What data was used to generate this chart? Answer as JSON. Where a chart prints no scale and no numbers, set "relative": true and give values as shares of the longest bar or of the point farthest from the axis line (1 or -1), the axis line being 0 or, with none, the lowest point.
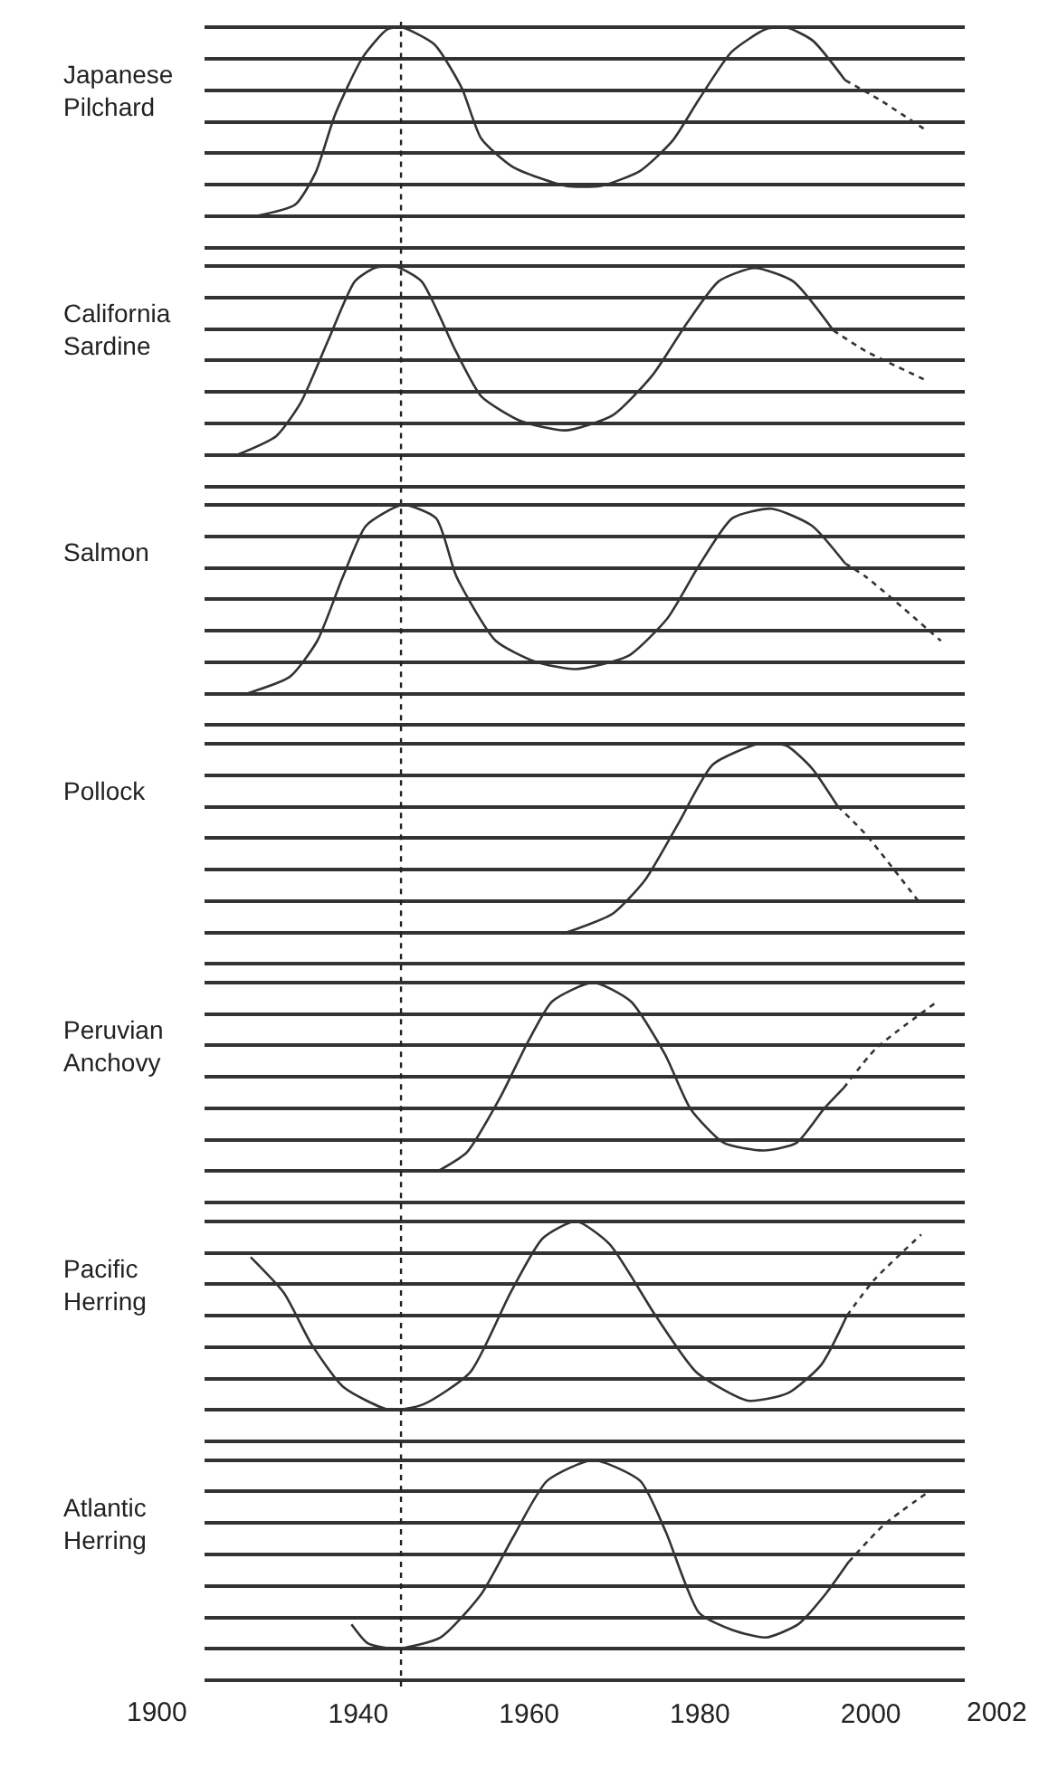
{
  "chart_data": [
    {
      "type": "line",
      "ylabel": "Japanese\nPilchard",
      "relative": true,
      "grid": "y",
      "tick_labels": false,
      "xlim": [
        1922,
        2011
      ],
      "ref_lines": [
        {
          "axis": "x",
          "value": 1945,
          "line_style": "dotted",
          "color": "#222222"
        }
      ],
      "series": [
        {
          "color": "#333333",
          "line_style": "solid",
          "x": [
            1928.0,
            1932.6,
            1935.0,
            1937.3,
            1940.5,
            1943.4,
            1945.1,
            1948.9,
            1952.1,
            1954.4,
            1958.1,
            1964.3,
            1968.4,
            1973.0,
            1976.8,
            1979.9,
            1983.7,
            1987.7,
            1990.1,
            1993.2,
            1997.0
          ],
          "values": [
            0,
            0.06,
            0.23,
            0.54,
            0.84,
            0.99,
            1,
            0.91,
            0.68,
            0.41,
            0.26,
            0.16,
            0.16,
            0.24,
            0.4,
            0.62,
            0.87,
            0.99,
            1,
            0.93,
            0.72
          ]
        },
        {
          "color": "#333333",
          "line_style": "dotted",
          "x": [
            1997.0,
            2000.9,
            2006.3
          ],
          "values": [
            0.72,
            0.62,
            0.46
          ]
        }
      ]
    },
    {
      "type": "line",
      "ylabel": "California\nSardine",
      "relative": true,
      "grid": "y",
      "tick_labels": false,
      "xlim": [
        1922,
        2011
      ],
      "ref_lines": [
        {
          "axis": "x",
          "value": 1945,
          "line_style": "dotted",
          "color": "#222222"
        }
      ],
      "series": [
        {
          "color": "#333333",
          "line_style": "solid",
          "x": [
            1925.8,
            1930.4,
            1933.3,
            1936.5,
            1939.6,
            1941.9,
            1944.3,
            1947.4,
            1951.3,
            1954.4,
            1959.0,
            1964.3,
            1969.8,
            1974.4,
            1978.5,
            1982.2,
            1986.4,
            1990.9,
            1995.6
          ],
          "values": [
            0,
            0.1,
            0.28,
            0.61,
            0.92,
            0.99,
            1,
            0.92,
            0.56,
            0.31,
            0.18,
            0.13,
            0.21,
            0.42,
            0.7,
            0.92,
            0.99,
            0.92,
            0.66
          ]
        },
        {
          "color": "#333333",
          "line_style": "dotted",
          "x": [
            1995.6,
            1999.4,
            2006.7
          ],
          "values": [
            0.66,
            0.55,
            0.39
          ]
        }
      ]
    },
    {
      "type": "line",
      "ylabel": "Salmon",
      "relative": true,
      "grid": "y",
      "tick_labels": false,
      "xlim": [
        1922,
        2011
      ],
      "ref_lines": [
        {
          "axis": "x",
          "value": 1945,
          "line_style": "dotted",
          "color": "#222222"
        }
      ],
      "series": [
        {
          "color": "#333333",
          "line_style": "solid",
          "x": [
            1926.9,
            1932.0,
            1935.2,
            1938.2,
            1940.9,
            1945.2,
            1949.1,
            1951.5,
            1956.1,
            1960.7,
            1965.4,
            1971.6,
            1976.2,
            1979.9,
            1983.8,
            1988.4,
            1993.1,
            1997.0
          ],
          "values": [
            0,
            0.09,
            0.28,
            0.62,
            0.89,
            1,
            0.93,
            0.62,
            0.28,
            0.17,
            0.13,
            0.2,
            0.4,
            0.68,
            0.93,
            0.98,
            0.89,
            0.69
          ]
        },
        {
          "color": "#333333",
          "line_style": "dotted",
          "x": [
            1997.0,
            1999.4,
            2008.2
          ],
          "values": [
            0.69,
            0.62,
            0.28
          ]
        }
      ]
    },
    {
      "type": "line",
      "ylabel": "Pollock",
      "relative": true,
      "grid": "y",
      "tick_labels": false,
      "xlim": [
        1922,
        2011
      ],
      "ref_lines": [
        {
          "axis": "x",
          "value": 1945,
          "line_style": "dotted",
          "color": "#222222"
        }
      ],
      "series": [
        {
          "color": "#333333",
          "line_style": "solid",
          "x": [
            1964.4,
            1969.8,
            1973.6,
            1977.5,
            1981.5,
            1986.9,
            1990.1,
            1993.1,
            1996.1
          ],
          "values": [
            0,
            0.1,
            0.28,
            0.58,
            0.89,
            1,
            0.99,
            0.87,
            0.67
          ]
        },
        {
          "color": "#333333",
          "line_style": "dotted",
          "x": [
            1996.1,
            1999.4,
            2005.5
          ],
          "values": [
            0.67,
            0.52,
            0.17
          ]
        }
      ]
    },
    {
      "type": "line",
      "ylabel": "Peruvian\nAnchovy",
      "relative": true,
      "grid": "y",
      "tick_labels": false,
      "xlim": [
        1922,
        2011
      ],
      "ref_lines": [
        {
          "axis": "x",
          "value": 1945,
          "line_style": "dotted",
          "color": "#222222"
        }
      ],
      "series": [
        {
          "color": "#333333",
          "line_style": "solid",
          "x": [
            1949.3,
            1952.7,
            1956.6,
            1959.8,
            1962.7,
            1967.5,
            1971.9,
            1975.9,
            1978.9,
            1982.8,
            1987.5,
            1991.3,
            1994.5,
            1996.8
          ],
          "values": [
            0,
            0.1,
            0.39,
            0.68,
            0.9,
            1,
            0.9,
            0.62,
            0.33,
            0.15,
            0.11,
            0.15,
            0.33,
            0.44
          ]
        },
        {
          "color": "#333333",
          "line_style": "dotted",
          "x": [
            1996.8,
            2000.6,
            2007.5
          ],
          "values": [
            0.44,
            0.65,
            0.89
          ]
        }
      ]
    },
    {
      "type": "line",
      "ylabel": "Pacific\nHerring",
      "relative": true,
      "grid": "y",
      "tick_labels": false,
      "xlim": [
        1922,
        2011
      ],
      "ref_lines": [
        {
          "axis": "x",
          "value": 1945,
          "line_style": "dotted",
          "color": "#222222"
        }
      ],
      "series": [
        {
          "color": "#333333",
          "line_style": "solid",
          "x": [
            1927.4,
            1931.3,
            1934.5,
            1938.3,
            1943.7,
            1947.6,
            1953.1,
            1957.8,
            1961.6,
            1965.5,
            1969.4,
            1974.8,
            1979.6,
            1985.6,
            1990.3,
            1994.2,
            1997.2
          ],
          "values": [
            0.81,
            0.62,
            0.35,
            0.12,
            0,
            0.03,
            0.2,
            0.62,
            0.91,
            1,
            0.88,
            0.5,
            0.2,
            0.05,
            0.09,
            0.24,
            0.5
          ]
        },
        {
          "color": "#333333",
          "line_style": "dotted",
          "x": [
            1997.2,
            2000.4,
            2005.9
          ],
          "values": [
            0.5,
            0.69,
            0.93
          ]
        }
      ]
    },
    {
      "type": "line",
      "ylabel": "Atlantic\nHerring",
      "relative": true,
      "grid": "y",
      "tick_labels": "x",
      "xlim": [
        1922,
        2011
      ],
      "xticks": [
        1940,
        1960,
        1980,
        2000
      ],
      "annotations": [
        "1900",
        "2002"
      ],
      "ref_lines": [
        {
          "axis": "x",
          "value": 1945,
          "line_style": "dotted",
          "color": "#222222"
        }
      ],
      "series": [
        {
          "color": "#333333",
          "line_style": "solid",
          "x": [
            1939.2,
            1941.1,
            1944.3,
            1949.6,
            1954.4,
            1958.1,
            1962.1,
            1967.5,
            1973.0,
            1976.0,
            1979.9,
            1983.8,
            1987.7,
            1991.5,
            1994.7,
            1997.4
          ],
          "values": [
            0.13,
            0.03,
            0,
            0.06,
            0.29,
            0.59,
            0.89,
            1,
            0.89,
            0.62,
            0.19,
            0.1,
            0.06,
            0.13,
            0.29,
            0.46
          ]
        },
        {
          "color": "#333333",
          "line_style": "dotted",
          "x": [
            1997.4,
            2001.6,
            2006.7
          ],
          "values": [
            0.46,
            0.66,
            0.83
          ]
        }
      ]
    }
  ]
}
